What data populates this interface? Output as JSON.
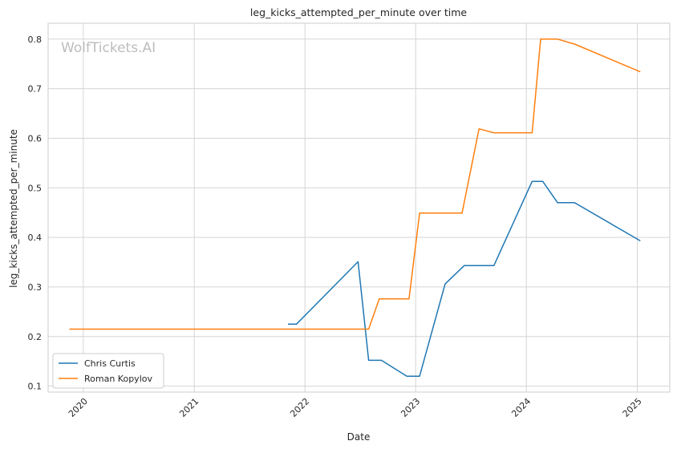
{
  "chart_data": {
    "type": "line",
    "title": "leg_kicks_attempted_per_minute over time",
    "xlabel": "Date",
    "ylabel": "leg_kicks_attempted_per_minute",
    "watermark": "WolfTickets.AI",
    "x_ticks": [
      "2020",
      "2021",
      "2022",
      "2023",
      "2024",
      "2025"
    ],
    "y_ticks": [
      "0.1",
      "0.2",
      "0.3",
      "0.4",
      "0.5",
      "0.6",
      "0.7",
      "0.8"
    ],
    "xlim": [
      "2019-09-07",
      "2025-04-18"
    ],
    "ylim": [
      0.088,
      0.832
    ],
    "grid": true,
    "legend_position": "lower-left",
    "series": [
      {
        "name": "Chris Curtis",
        "color": "#1f77b4",
        "points": [
          [
            "2021-11-06",
            0.225
          ],
          [
            "2021-12-04",
            0.225
          ],
          [
            "2022-06-25",
            0.351
          ],
          [
            "2022-07-30",
            0.152
          ],
          [
            "2022-09-10",
            0.152
          ],
          [
            "2022-12-03",
            0.12
          ],
          [
            "2023-01-14",
            0.12
          ],
          [
            "2023-04-08",
            0.306
          ],
          [
            "2023-06-10",
            0.343
          ],
          [
            "2023-09-16",
            0.343
          ],
          [
            "2024-01-20",
            0.513
          ],
          [
            "2024-02-24",
            0.513
          ],
          [
            "2024-04-13",
            0.47
          ],
          [
            "2024-06-08",
            0.47
          ],
          [
            "2025-01-11",
            0.393
          ]
        ]
      },
      {
        "name": "Roman Kopylov",
        "color": "#ff7f0e",
        "points": [
          [
            "2019-11-16",
            0.215
          ],
          [
            "2022-07-30",
            0.215
          ],
          [
            "2022-09-03",
            0.276
          ],
          [
            "2022-12-10",
            0.276
          ],
          [
            "2023-01-14",
            0.449
          ],
          [
            "2023-06-03",
            0.449
          ],
          [
            "2023-07-29",
            0.619
          ],
          [
            "2023-09-16",
            0.611
          ],
          [
            "2024-01-20",
            0.611
          ],
          [
            "2024-02-17",
            0.8
          ],
          [
            "2024-04-13",
            0.8
          ],
          [
            "2024-06-08",
            0.79
          ],
          [
            "2025-01-11",
            0.734
          ]
        ]
      }
    ]
  }
}
